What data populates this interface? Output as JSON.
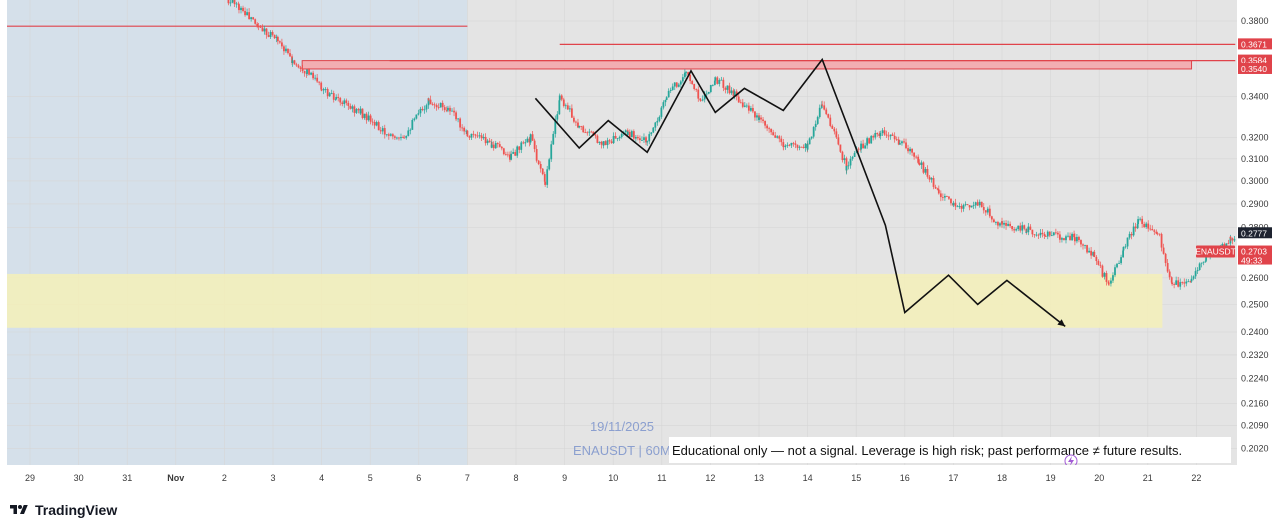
{
  "brand": {
    "logo_icon": "tradingview-logo-icon",
    "name": "TradingView"
  },
  "watermark": {
    "date": "19/11/2025",
    "symbol_line": "ENAUSDT | 60M"
  },
  "disclaimer": "Educational only — not a signal. Leverage is high risk; past performance ≠ future results.",
  "colors": {
    "up": "#26a69a",
    "down": "#ef5350",
    "resistance": "#e0434a",
    "support_zone": "#f4f0b8",
    "left_shade": "#d5e0ea",
    "chart_bg": "#e4e4e4",
    "projection": "#111111",
    "last_price_tag": "#e0434a",
    "prev_close_tag": "#1e2330"
  },
  "chart_data": {
    "type": "candlestick",
    "symbol": "ENAUSDT",
    "interval": "60M",
    "y_axis": {
      "scale": "log",
      "range": [
        0.197,
        0.395
      ],
      "ticks": [
        "0.3800",
        "0.3400",
        "0.3200",
        "0.3100",
        "0.3000",
        "0.2900",
        "0.2800",
        "0.2600",
        "0.2500",
        "0.2400",
        "0.2320",
        "0.2240",
        "0.2160",
        "0.2090",
        "0.2020"
      ]
    },
    "x_axis": {
      "unit": "day",
      "range": [
        28.5,
        22.6
      ],
      "ticks": [
        {
          "label": "29",
          "day": 29
        },
        {
          "label": "30",
          "day": 30
        },
        {
          "label": "31",
          "day": 31
        },
        {
          "label": "Nov",
          "day": 32
        },
        {
          "label": "2",
          "day": 33
        },
        {
          "label": "3",
          "day": 34
        },
        {
          "label": "4",
          "day": 35
        },
        {
          "label": "5",
          "day": 36
        },
        {
          "label": "6",
          "day": 37
        },
        {
          "label": "7",
          "day": 38
        },
        {
          "label": "8",
          "day": 39
        },
        {
          "label": "9",
          "day": 40
        },
        {
          "label": "10",
          "day": 41
        },
        {
          "label": "11",
          "day": 42
        },
        {
          "label": "12",
          "day": 43
        },
        {
          "label": "13",
          "day": 44
        },
        {
          "label": "14",
          "day": 45
        },
        {
          "label": "15",
          "day": 46
        },
        {
          "label": "16",
          "day": 47
        },
        {
          "label": "17",
          "day": 48
        },
        {
          "label": "18",
          "day": 49
        },
        {
          "label": "19",
          "day": 50
        },
        {
          "label": "20",
          "day": 51
        },
        {
          "label": "21",
          "day": 52
        },
        {
          "label": "22",
          "day": 53
        }
      ]
    },
    "price_waypoints": [
      [
        30.6,
        0.405
      ],
      [
        31.0,
        0.399
      ],
      [
        31.5,
        0.402
      ],
      [
        32.0,
        0.401
      ],
      [
        32.5,
        0.402
      ],
      [
        33.0,
        0.394
      ],
      [
        33.3,
        0.388
      ],
      [
        33.7,
        0.377
      ],
      [
        34.1,
        0.37
      ],
      [
        34.4,
        0.358
      ],
      [
        34.7,
        0.353
      ],
      [
        35.0,
        0.344
      ],
      [
        35.3,
        0.338
      ],
      [
        35.8,
        0.332
      ],
      [
        36.3,
        0.322
      ],
      [
        36.7,
        0.321
      ],
      [
        37.2,
        0.338
      ],
      [
        37.6,
        0.334
      ],
      [
        38.0,
        0.322
      ],
      [
        38.5,
        0.317
      ],
      [
        38.9,
        0.311
      ],
      [
        39.3,
        0.32
      ],
      [
        39.6,
        0.298
      ],
      [
        39.9,
        0.34
      ],
      [
        40.3,
        0.325
      ],
      [
        40.8,
        0.317
      ],
      [
        41.3,
        0.322
      ],
      [
        41.7,
        0.318
      ],
      [
        42.1,
        0.34
      ],
      [
        42.5,
        0.352
      ],
      [
        42.8,
        0.338
      ],
      [
        43.1,
        0.349
      ],
      [
        43.5,
        0.341
      ],
      [
        44.0,
        0.328
      ],
      [
        44.5,
        0.316
      ],
      [
        45.0,
        0.316
      ],
      [
        45.3,
        0.337
      ],
      [
        45.8,
        0.306
      ],
      [
        46.1,
        0.316
      ],
      [
        46.5,
        0.322
      ],
      [
        46.9,
        0.318
      ],
      [
        47.3,
        0.308
      ],
      [
        47.7,
        0.295
      ],
      [
        48.0,
        0.289
      ],
      [
        48.5,
        0.29
      ],
      [
        49.0,
        0.281
      ],
      [
        49.5,
        0.279
      ],
      [
        49.9,
        0.277
      ],
      [
        50.5,
        0.276
      ],
      [
        50.9,
        0.268
      ],
      [
        51.2,
        0.257
      ],
      [
        51.5,
        0.271
      ],
      [
        51.8,
        0.283
      ],
      [
        52.2,
        0.279
      ],
      [
        52.5,
        0.257
      ],
      [
        52.9,
        0.26
      ],
      [
        53.2,
        0.268
      ],
      [
        53.7,
        0.275
      ],
      [
        54.1,
        0.282
      ],
      [
        54.4,
        0.275
      ],
      [
        54.8,
        0.27
      ]
    ],
    "horizontal_lines": [
      {
        "price": 0.3771,
        "x_from": 28.5,
        "x_to": 38.0
      },
      {
        "price": 0.3671,
        "x_from": 39.9,
        "x_to": 53.8
      },
      {
        "price": 0.3584,
        "x_from": 36.4,
        "x_to": 53.8
      }
    ],
    "resistance_zone": {
      "top": 0.3584,
      "bottom": 0.354,
      "x_from": 34.6,
      "x_to": 52.9
    },
    "support_zone": {
      "top": 0.2615,
      "bottom": 0.2415,
      "x_from": 28.5,
      "x_to": 52.3
    },
    "shaded_region": {
      "x_from": 28.5,
      "x_to": 38.0
    },
    "projection_path": [
      [
        39.4,
        0.339
      ],
      [
        40.3,
        0.315
      ],
      [
        40.9,
        0.328
      ],
      [
        41.7,
        0.313
      ],
      [
        42.6,
        0.353
      ],
      [
        43.1,
        0.332
      ],
      [
        43.7,
        0.344
      ],
      [
        44.5,
        0.333
      ],
      [
        45.3,
        0.359
      ],
      [
        46.6,
        0.281
      ],
      [
        47.0,
        0.247
      ],
      [
        47.9,
        0.261
      ],
      [
        48.5,
        0.25
      ],
      [
        49.1,
        0.259
      ],
      [
        50.3,
        0.242
      ]
    ],
    "price_labels": [
      {
        "text": "0.3671",
        "price": 0.3671,
        "style": "red"
      },
      {
        "text": "0.3584",
        "price": 0.3584,
        "style": "red"
      },
      {
        "text": "0.3540",
        "price": 0.354,
        "style": "red"
      },
      {
        "text": "0.2777",
        "price": 0.2777,
        "style": "dark"
      },
      {
        "text": "ENAUSDT",
        "price": 0.2703,
        "style": "red",
        "side": "left"
      },
      {
        "text": "0.2703",
        "price": 0.2703,
        "style": "red",
        "sub": "49:33"
      }
    ],
    "last_price": 0.2703,
    "countdown": "49:33"
  }
}
